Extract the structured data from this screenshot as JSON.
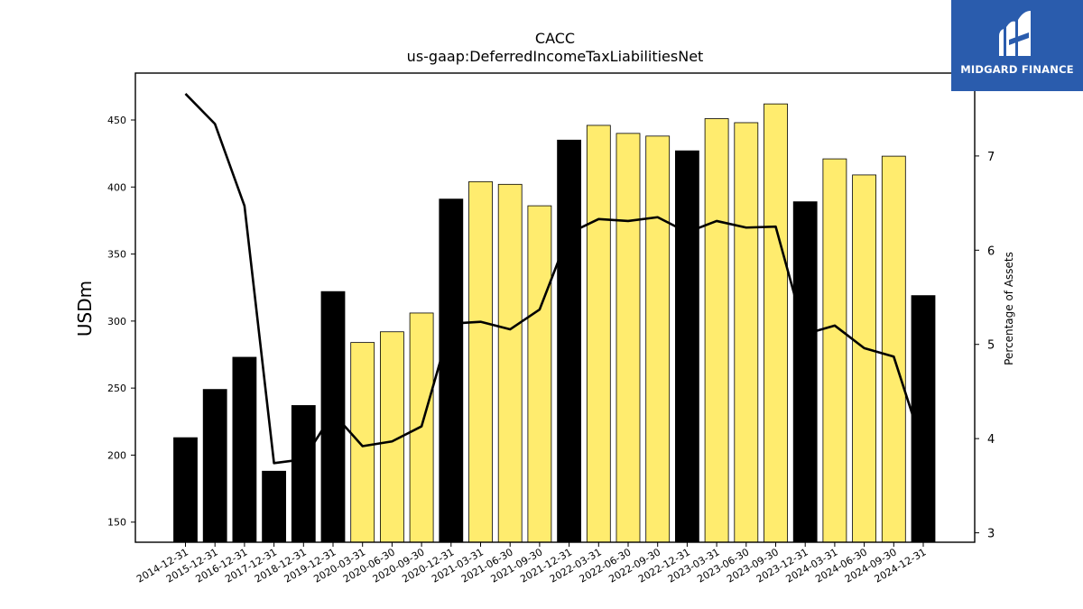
{
  "chart_data": {
    "type": "bar",
    "title": "CACC",
    "subtitle": "us-gaap:DeferredIncomeTaxLiabilitiesNet",
    "ylabel": "USDm",
    "y2label": "Percentage of Assets",
    "ylim": [
      135,
      485
    ],
    "y2lim": [
      2.9,
      7.88
    ],
    "yticks": [
      150,
      200,
      250,
      300,
      350,
      400,
      450
    ],
    "y2ticks": [
      3,
      4,
      5,
      6,
      7
    ],
    "categories": [
      "2014-12-31",
      "2015-12-31",
      "2016-12-31",
      "2017-12-31",
      "2018-12-31",
      "2019-12-31",
      "2020-03-31",
      "2020-06-30",
      "2020-09-30",
      "2020-12-31",
      "2021-03-31",
      "2021-06-30",
      "2021-09-30",
      "2021-12-31",
      "2022-03-31",
      "2022-06-30",
      "2022-09-30",
      "2022-12-31",
      "2023-03-31",
      "2023-06-30",
      "2023-09-30",
      "2023-12-31",
      "2024-03-31",
      "2024-06-30",
      "2024-09-30",
      "2024-12-31"
    ],
    "series": [
      {
        "type": "bar",
        "values": [
          213,
          249,
          273,
          188,
          237,
          322,
          284,
          292,
          306,
          391,
          404,
          402,
          386,
          435,
          446,
          440,
          438,
          427,
          451,
          448,
          462,
          389,
          421,
          409,
          423,
          319
        ],
        "colors": [
          "#000000",
          "#000000",
          "#000000",
          "#000000",
          "#000000",
          "#000000",
          "#ffec6e",
          "#ffec6e",
          "#ffec6e",
          "#000000",
          "#ffec6e",
          "#ffec6e",
          "#ffec6e",
          "#000000",
          "#ffec6e",
          "#ffec6e",
          "#ffec6e",
          "#000000",
          "#ffec6e",
          "#ffec6e",
          "#ffec6e",
          "#000000",
          "#ffec6e",
          "#ffec6e",
          "#ffec6e",
          "#000000"
        ]
      },
      {
        "type": "line",
        "axis": "right",
        "values": [
          7.66,
          7.34,
          6.47,
          3.74,
          3.78,
          4.27,
          3.92,
          3.97,
          4.13,
          5.22,
          5.24,
          5.16,
          5.37,
          6.18,
          6.33,
          6.31,
          6.35,
          6.19,
          6.31,
          6.24,
          6.25,
          5.11,
          5.2,
          4.96,
          4.87,
          3.9
        ],
        "color": "#000000"
      }
    ],
    "grid": false
  },
  "logo": {
    "text": "MIDGARD FINANCE",
    "color": "#2a5cad"
  }
}
